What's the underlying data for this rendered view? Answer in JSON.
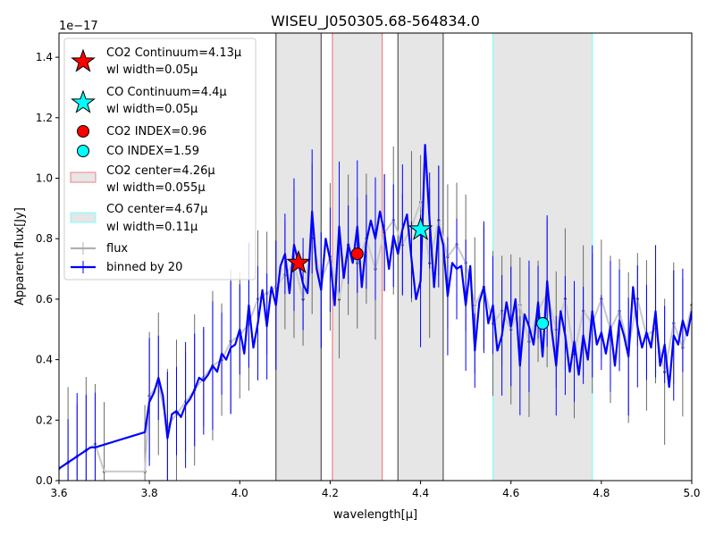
{
  "chart_data": {
    "type": "line",
    "title": "WISEU_J050305.68-564834.0",
    "xlabel": "wavelength[μ]",
    "ylabel": "Apparent flux[Jy]",
    "y_offset_text": "1e−17",
    "xlim": [
      3.6,
      5.0
    ],
    "ylim": [
      0.0,
      1.48
    ],
    "xticks": [
      "3.6",
      "3.8",
      "4.0",
      "4.2",
      "4.4",
      "4.6",
      "4.8",
      "5.0"
    ],
    "yticks": [
      "0.0",
      "0.2",
      "0.4",
      "0.6",
      "0.8",
      "1.0",
      "1.2",
      "1.4"
    ],
    "grid": false,
    "legend_position": "upper-left",
    "legend": [
      {
        "label_line1": "CO2 Continuum=4.13μ",
        "label_line2": "wl width=0.05μ",
        "marker": "star",
        "color": "#ff0000"
      },
      {
        "label_line1": "CO Continuum=4.4μ",
        "label_line2": "wl width=0.05μ",
        "marker": "star",
        "color": "#00ffff"
      },
      {
        "label_line1": "CO2 INDEX=0.96",
        "label_line2": "",
        "marker": "circle",
        "color": "#ff0000"
      },
      {
        "label_line1": "CO  INDEX=1.59",
        "label_line2": "",
        "marker": "circle",
        "color": "#00ffff"
      },
      {
        "label_line1": "CO2 center=4.26μ",
        "label_line2": "wl width=0.055μ",
        "marker": "rect",
        "color": "#f08080"
      },
      {
        "label_line1": "CO center=4.67μ",
        "label_line2": "wl width=0.11μ",
        "marker": "rect",
        "color": "#7fffff"
      },
      {
        "label_line1": "flux",
        "label_line2": "",
        "marker": "errline",
        "color": "#b0b0b0"
      },
      {
        "label_line1": "binned by 20",
        "label_line2": "",
        "marker": "errline",
        "color": "#0000ff"
      }
    ],
    "bands": [
      {
        "name": "CO2 continuum band",
        "x0": 4.08,
        "x1": 4.18,
        "edge": "#555555"
      },
      {
        "name": "CO2 center band",
        "x0": 4.205,
        "x1": 4.315,
        "edge": "#f08080"
      },
      {
        "name": "CO continuum band",
        "x0": 4.35,
        "x1": 4.45,
        "edge": "#555555"
      },
      {
        "name": "CO center band",
        "x0": 4.56,
        "x1": 4.78,
        "edge": "#7fffff"
      }
    ],
    "markers": [
      {
        "name": "CO2 continuum star",
        "x": 4.13,
        "y": 0.72,
        "shape": "star",
        "color": "#ff0000"
      },
      {
        "name": "CO continuum star",
        "x": 4.4,
        "y": 0.83,
        "shape": "star",
        "color": "#00ffff"
      },
      {
        "name": "CO2 index circle",
        "x": 4.26,
        "y": 0.75,
        "shape": "circle",
        "color": "#ff0000"
      },
      {
        "name": "CO index circle",
        "x": 4.67,
        "y": 0.52,
        "shape": "circle",
        "color": "#00ffff"
      }
    ],
    "flux_x": [
      3.6,
      3.62,
      3.64,
      3.66,
      3.68,
      3.7,
      3.79,
      3.8,
      3.82,
      3.84,
      3.86,
      3.88,
      3.9,
      3.92,
      3.94,
      3.96,
      3.98,
      4.0,
      4.02,
      4.04,
      4.06,
      4.08,
      4.1,
      4.12,
      4.14,
      4.16,
      4.18,
      4.2,
      4.22,
      4.24,
      4.26,
      4.28,
      4.3,
      4.32,
      4.34,
      4.36,
      4.38,
      4.4,
      4.42,
      4.44,
      4.46,
      4.48,
      4.5,
      4.52,
      4.54,
      4.56,
      4.58,
      4.6,
      4.62,
      4.64,
      4.66,
      4.68,
      4.7,
      4.72,
      4.74,
      4.76,
      4.78,
      4.8,
      4.82,
      4.84,
      4.86,
      4.88,
      4.9,
      4.92,
      4.94,
      4.96,
      4.98,
      5.0
    ],
    "flux_y": [
      0.04,
      0.06,
      0.08,
      0.1,
      0.12,
      0.03,
      0.03,
      0.28,
      0.32,
      0.18,
      0.22,
      0.26,
      0.3,
      0.34,
      0.38,
      0.4,
      0.46,
      0.48,
      0.52,
      0.6,
      0.62,
      0.64,
      0.68,
      0.72,
      0.6,
      0.8,
      0.66,
      0.74,
      0.6,
      0.78,
      0.72,
      0.8,
      0.7,
      0.82,
      0.86,
      0.78,
      0.84,
      0.92,
      0.72,
      0.86,
      0.74,
      0.78,
      0.72,
      0.58,
      0.64,
      0.52,
      0.56,
      0.5,
      0.58,
      0.46,
      0.56,
      0.62,
      0.5,
      0.6,
      0.42,
      0.56,
      0.52,
      0.6,
      0.5,
      0.56,
      0.44,
      0.6,
      0.48,
      0.5,
      0.36,
      0.52,
      0.44,
      0.58
    ],
    "binned": {
      "name": "binned by 20",
      "x": [
        3.6,
        3.61,
        3.62,
        3.63,
        3.64,
        3.65,
        3.66,
        3.67,
        3.68,
        3.79,
        3.8,
        3.81,
        3.82,
        3.83,
        3.84,
        3.85,
        3.86,
        3.87,
        3.88,
        3.89,
        3.9,
        3.91,
        3.92,
        3.93,
        3.94,
        3.95,
        3.96,
        3.97,
        3.98,
        3.99,
        4.0,
        4.01,
        4.02,
        4.03,
        4.04,
        4.05,
        4.06,
        4.07,
        4.08,
        4.09,
        4.1,
        4.11,
        4.12,
        4.13,
        4.14,
        4.15,
        4.16,
        4.17,
        4.18,
        4.19,
        4.2,
        4.21,
        4.22,
        4.23,
        4.24,
        4.25,
        4.26,
        4.27,
        4.28,
        4.29,
        4.3,
        4.31,
        4.32,
        4.33,
        4.34,
        4.35,
        4.36,
        4.37,
        4.38,
        4.39,
        4.4,
        4.41,
        4.42,
        4.43,
        4.44,
        4.45,
        4.46,
        4.47,
        4.48,
        4.49,
        4.5,
        4.51,
        4.52,
        4.53,
        4.54,
        4.55,
        4.56,
        4.57,
        4.58,
        4.59,
        4.6,
        4.61,
        4.62,
        4.63,
        4.64,
        4.65,
        4.66,
        4.67,
        4.68,
        4.69,
        4.7,
        4.71,
        4.72,
        4.73,
        4.74,
        4.75,
        4.76,
        4.77,
        4.78,
        4.79,
        4.8,
        4.81,
        4.82,
        4.83,
        4.84,
        4.85,
        4.86,
        4.87,
        4.88,
        4.89,
        4.9,
        4.91,
        4.92,
        4.93,
        4.94,
        4.95,
        4.96,
        4.97,
        4.98,
        4.99,
        5.0
      ],
      "y": [
        0.04,
        0.05,
        0.06,
        0.07,
        0.08,
        0.09,
        0.1,
        0.11,
        0.11,
        0.16,
        0.26,
        0.29,
        0.34,
        0.28,
        0.14,
        0.22,
        0.23,
        0.21,
        0.25,
        0.27,
        0.3,
        0.34,
        0.33,
        0.35,
        0.38,
        0.36,
        0.42,
        0.4,
        0.44,
        0.45,
        0.5,
        0.42,
        0.58,
        0.44,
        0.52,
        0.63,
        0.51,
        0.64,
        0.58,
        0.71,
        0.75,
        0.62,
        0.78,
        0.72,
        0.65,
        0.62,
        0.89,
        0.7,
        0.63,
        0.8,
        0.73,
        0.58,
        0.84,
        0.67,
        0.78,
        0.72,
        0.84,
        0.64,
        0.79,
        0.86,
        0.8,
        0.89,
        0.82,
        0.7,
        0.81,
        0.75,
        0.83,
        0.88,
        0.73,
        0.6,
        0.66,
        1.11,
        0.86,
        0.64,
        0.84,
        0.78,
        0.61,
        0.72,
        0.7,
        0.71,
        0.58,
        0.71,
        0.43,
        0.59,
        0.64,
        0.52,
        0.58,
        0.43,
        0.48,
        0.59,
        0.51,
        0.6,
        0.38,
        0.55,
        0.51,
        0.45,
        0.59,
        0.41,
        0.66,
        0.5,
        0.38,
        0.56,
        0.48,
        0.36,
        0.46,
        0.35,
        0.48,
        0.4,
        0.56,
        0.45,
        0.49,
        0.42,
        0.51,
        0.38,
        0.53,
        0.48,
        0.41,
        0.64,
        0.51,
        0.44,
        0.49,
        0.44,
        0.56,
        0.38,
        0.45,
        0.31,
        0.48,
        0.45,
        0.53,
        0.48,
        0.56
      ]
    }
  }
}
